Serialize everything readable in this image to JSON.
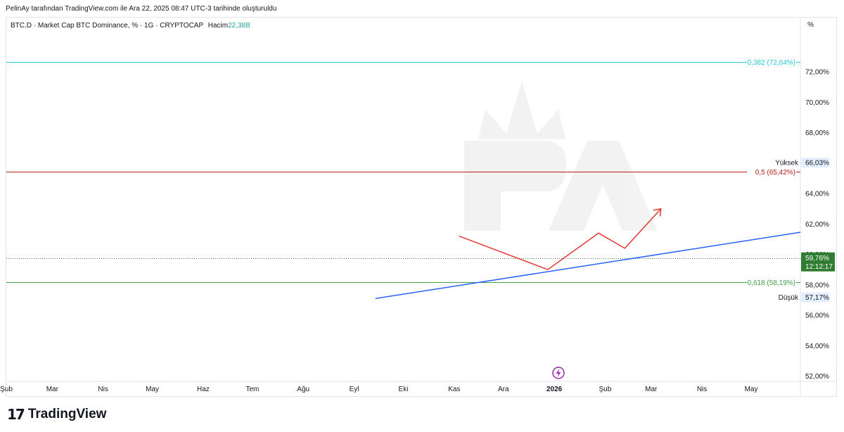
{
  "header": {
    "credit": "PelinAy tarafından TradingView.com ile Ara 22, 2025 08:47 UTC-3 tarihinde oluşturuldu"
  },
  "legend": {
    "symbol": "BTC.D · Market Cap BTC Dominance, % · 1G · CRYPTOCAP",
    "volume_label": "Hacim",
    "volume_value": "22,38B"
  },
  "axis": {
    "unit": "%"
  },
  "footer": {
    "brand": "TradingView",
    "logo_mark": "17"
  },
  "colors": {
    "up": "#26a69a",
    "down": "#ef5350",
    "candle_dark": "#131722",
    "fib_0382": "#26c6da",
    "fib_05": "#b71c1c",
    "fib_0618": "#43a047",
    "trendline": "#2962ff",
    "projection": "#e53935",
    "price_badge": "#2e7d32",
    "watermark": "#c9c9c9"
  },
  "chart_data": {
    "type": "candlestick",
    "symbol": "BTC.D",
    "ylim": [
      51.7,
      74.5
    ],
    "y_ticks": [
      {
        "v": 72,
        "label": "72,00%"
      },
      {
        "v": 70,
        "label": "70,00%"
      },
      {
        "v": 68,
        "label": "68,00%"
      },
      {
        "v": 66,
        "label": "66,00%"
      },
      {
        "v": 64,
        "label": "64,00%"
      },
      {
        "v": 62,
        "label": "62,00%"
      },
      {
        "v": 60,
        "label": "60,00%"
      },
      {
        "v": 58,
        "label": "58,00%"
      },
      {
        "v": 56,
        "label": "56,00%"
      },
      {
        "v": 54,
        "label": "54,00%"
      },
      {
        "v": 52,
        "label": "52,00%"
      }
    ],
    "x_range": [
      "2025-02-01",
      "2026-05-31"
    ],
    "x_ticks": [
      {
        "date": "2025-02-01",
        "label": "Şub"
      },
      {
        "date": "2025-03-01",
        "label": "Mar"
      },
      {
        "date": "2025-04-01",
        "label": "Nis"
      },
      {
        "date": "2025-05-01",
        "label": "May"
      },
      {
        "date": "2025-06-01",
        "label": "Haz"
      },
      {
        "date": "2025-07-01",
        "label": "Tem"
      },
      {
        "date": "2025-08-01",
        "label": "Ağu"
      },
      {
        "date": "2025-09-01",
        "label": "Eyl"
      },
      {
        "date": "2025-10-01",
        "label": "Eki"
      },
      {
        "date": "2025-11-01",
        "label": "Kas"
      },
      {
        "date": "2025-12-01",
        "label": "Ara"
      },
      {
        "date": "2026-01-01",
        "label": "2026",
        "bold": true
      },
      {
        "date": "2026-02-01",
        "label": "Şub"
      },
      {
        "date": "2026-03-01",
        "label": "Mar"
      },
      {
        "date": "2026-04-01",
        "label": "Nis"
      },
      {
        "date": "2026-05-01",
        "label": "May"
      }
    ],
    "close_path": [
      [
        "2025-02-01",
        60.0
      ],
      [
        "2025-02-02",
        58.6
      ],
      [
        "2025-02-03",
        61.5
      ],
      [
        "2025-02-05",
        61.6
      ],
      [
        "2025-02-08",
        61.2
      ],
      [
        "2025-02-12",
        60.8
      ],
      [
        "2025-02-16",
        60.6
      ],
      [
        "2025-02-20",
        60.9
      ],
      [
        "2025-02-25",
        61.1
      ],
      [
        "2025-03-02",
        60.8
      ],
      [
        "2025-03-06",
        61.4
      ],
      [
        "2025-03-10",
        61.2
      ],
      [
        "2025-03-15",
        61.7
      ],
      [
        "2025-03-20",
        61.4
      ],
      [
        "2025-03-25",
        61.5
      ],
      [
        "2025-03-30",
        61.8
      ],
      [
        "2025-04-04",
        62.5
      ],
      [
        "2025-04-09",
        63.0
      ],
      [
        "2025-04-14",
        63.5
      ],
      [
        "2025-04-19",
        63.8
      ],
      [
        "2025-04-24",
        64.2
      ],
      [
        "2025-04-29",
        64.5
      ],
      [
        "2025-05-04",
        64.8
      ],
      [
        "2025-05-07",
        65.1
      ],
      [
        "2025-05-09",
        63.4
      ],
      [
        "2025-05-12",
        62.4
      ],
      [
        "2025-05-14",
        62.3
      ],
      [
        "2025-05-18",
        63.3
      ],
      [
        "2025-05-22",
        64.0
      ],
      [
        "2025-05-26",
        64.1
      ],
      [
        "2025-05-30",
        64.0
      ],
      [
        "2025-06-03",
        64.3
      ],
      [
        "2025-06-07",
        64.5
      ],
      [
        "2025-06-11",
        63.9
      ],
      [
        "2025-06-15",
        64.5
      ],
      [
        "2025-06-19",
        64.8
      ],
      [
        "2025-06-23",
        65.3
      ],
      [
        "2025-06-27",
        65.8
      ],
      [
        "2025-07-01",
        65.6
      ],
      [
        "2025-07-05",
        65.4
      ],
      [
        "2025-07-09",
        65.2
      ],
      [
        "2025-07-12",
        64.8
      ],
      [
        "2025-07-14",
        63.8
      ],
      [
        "2025-07-16",
        62.8
      ],
      [
        "2025-07-18",
        61.8
      ],
      [
        "2025-07-20",
        61.0
      ],
      [
        "2025-07-23",
        61.5
      ],
      [
        "2025-07-27",
        61.3
      ],
      [
        "2025-07-31",
        61.6
      ],
      [
        "2025-08-03",
        61.9
      ],
      [
        "2025-08-05",
        62.3
      ],
      [
        "2025-08-07",
        61.6
      ],
      [
        "2025-08-10",
        60.7
      ],
      [
        "2025-08-13",
        59.9
      ],
      [
        "2025-08-16",
        59.6
      ],
      [
        "2025-08-19",
        59.2
      ],
      [
        "2025-08-22",
        58.6
      ],
      [
        "2025-08-25",
        57.9
      ],
      [
        "2025-08-28",
        57.8
      ],
      [
        "2025-08-31",
        58.1
      ],
      [
        "2025-09-03",
        58.4
      ],
      [
        "2025-09-06",
        58.3
      ],
      [
        "2025-09-09",
        58.0
      ],
      [
        "2025-09-12",
        57.6
      ],
      [
        "2025-09-14",
        57.4
      ],
      [
        "2025-09-16",
        57.6
      ],
      [
        "2025-09-18",
        57.9
      ],
      [
        "2025-09-21",
        58.4
      ],
      [
        "2025-09-24",
        58.6
      ],
      [
        "2025-09-27",
        58.7
      ],
      [
        "2025-09-30",
        58.9
      ],
      [
        "2025-10-03",
        59.1
      ],
      [
        "2025-10-06",
        59.5
      ],
      [
        "2025-10-08",
        59.6
      ],
      [
        "2025-10-10",
        60.4
      ],
      [
        "2025-10-11",
        60.0
      ],
      [
        "2025-10-13",
        59.5
      ],
      [
        "2025-10-16",
        59.4
      ],
      [
        "2025-10-19",
        59.6
      ],
      [
        "2025-10-22",
        59.6
      ],
      [
        "2025-10-25",
        59.4
      ],
      [
        "2025-10-28",
        59.7
      ],
      [
        "2025-10-31",
        59.8
      ],
      [
        "2025-11-03",
        60.2
      ],
      [
        "2025-11-05",
        60.4
      ],
      [
        "2025-11-08",
        59.9
      ],
      [
        "2025-11-11",
        59.6
      ],
      [
        "2025-11-14",
        59.4
      ],
      [
        "2025-11-17",
        59.0
      ],
      [
        "2025-11-20",
        58.7
      ],
      [
        "2025-11-23",
        58.6
      ],
      [
        "2025-11-26",
        59.0
      ],
      [
        "2025-11-29",
        59.2
      ],
      [
        "2025-12-02",
        59.1
      ],
      [
        "2025-12-05",
        58.9
      ],
      [
        "2025-12-08",
        59.0
      ],
      [
        "2025-12-11",
        58.9
      ],
      [
        "2025-12-14",
        59.1
      ],
      [
        "2025-12-17",
        59.4
      ],
      [
        "2025-12-20",
        59.6
      ],
      [
        "2025-12-22",
        59.76
      ]
    ],
    "wick_spikes": [
      {
        "date": "2025-02-03",
        "high": 64.3
      },
      {
        "date": "2025-06-25",
        "high": 66.1
      },
      {
        "date": "2025-10-10",
        "high": 63.5
      }
    ],
    "fib_levels": [
      {
        "ratio": "0,382",
        "label": "0,382 (72,64%)",
        "value": 72.64,
        "color": "#26c6da"
      },
      {
        "ratio": "0,5",
        "label": "0,5 (65,42%)",
        "value": 65.42,
        "color": "#b71c1c"
      },
      {
        "ratio": "0,618",
        "label": "0,618 (58,19%)",
        "value": 58.19,
        "color": "#43a047"
      }
    ],
    "high_marker": {
      "label": "Yüksek",
      "value_label": "66,03%",
      "value": 66.03
    },
    "low_marker": {
      "label": "Düşük",
      "value_label": "57,17%",
      "value": 57.17
    },
    "last_price": {
      "value": 59.76,
      "label": "59,76%",
      "countdown": "12:12:17"
    },
    "trendline": {
      "from": [
        "2025-09-14",
        57.1
      ],
      "to": [
        "2026-05-31",
        61.45
      ]
    },
    "down_segment": {
      "from": [
        "2025-11-04",
        61.2
      ],
      "to": [
        "2025-12-28",
        59.0
      ]
    },
    "projection_path": [
      [
        "2025-12-28",
        59.0
      ],
      [
        "2026-01-28",
        61.4
      ],
      [
        "2026-02-13",
        60.4
      ],
      [
        "2026-03-07",
        63.0
      ]
    ],
    "grid": false,
    "legend_position": "top-left"
  }
}
